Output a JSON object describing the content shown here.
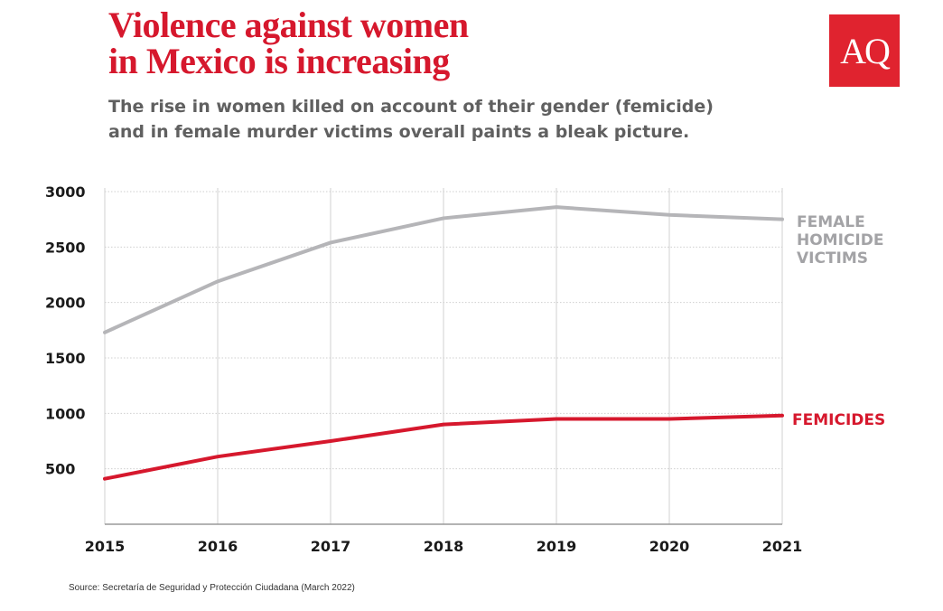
{
  "title_lines": [
    "Violence against women",
    "in Mexico is increasing"
  ],
  "subtitle_lines": [
    "The rise in women killed on account of their gender (femicide)",
    "and in female murder victims overall paints a bleak picture."
  ],
  "logo": {
    "text": "AQ",
    "color": "#e0232f"
  },
  "source": "Source: Secretaría de Seguridad y Protección Ciudadana (March 2022)",
  "colors": {
    "accent": "#d6182d",
    "gray_series": "#b5b5b8",
    "red_series": "#d6182d",
    "grid": "#d9d9d9"
  },
  "chart_data": {
    "type": "line",
    "x": [
      "2015",
      "2016",
      "2017",
      "2018",
      "2019",
      "2020",
      "2021"
    ],
    "yticks": [
      "500",
      "1000",
      "1500",
      "2000",
      "2500",
      "3000"
    ],
    "ylim": [
      0,
      3000
    ],
    "grid": true,
    "series": [
      {
        "name_lines": [
          "FEMALE",
          "HOMICIDE",
          "VICTIMS"
        ],
        "values": [
          1730,
          2190,
          2540,
          2760,
          2860,
          2790,
          2750
        ],
        "color": "#b5b5b8"
      },
      {
        "name_lines": [
          "FEMICIDES"
        ],
        "values": [
          410,
          610,
          750,
          900,
          950,
          950,
          980
        ],
        "color": "#d6182d"
      }
    ]
  }
}
